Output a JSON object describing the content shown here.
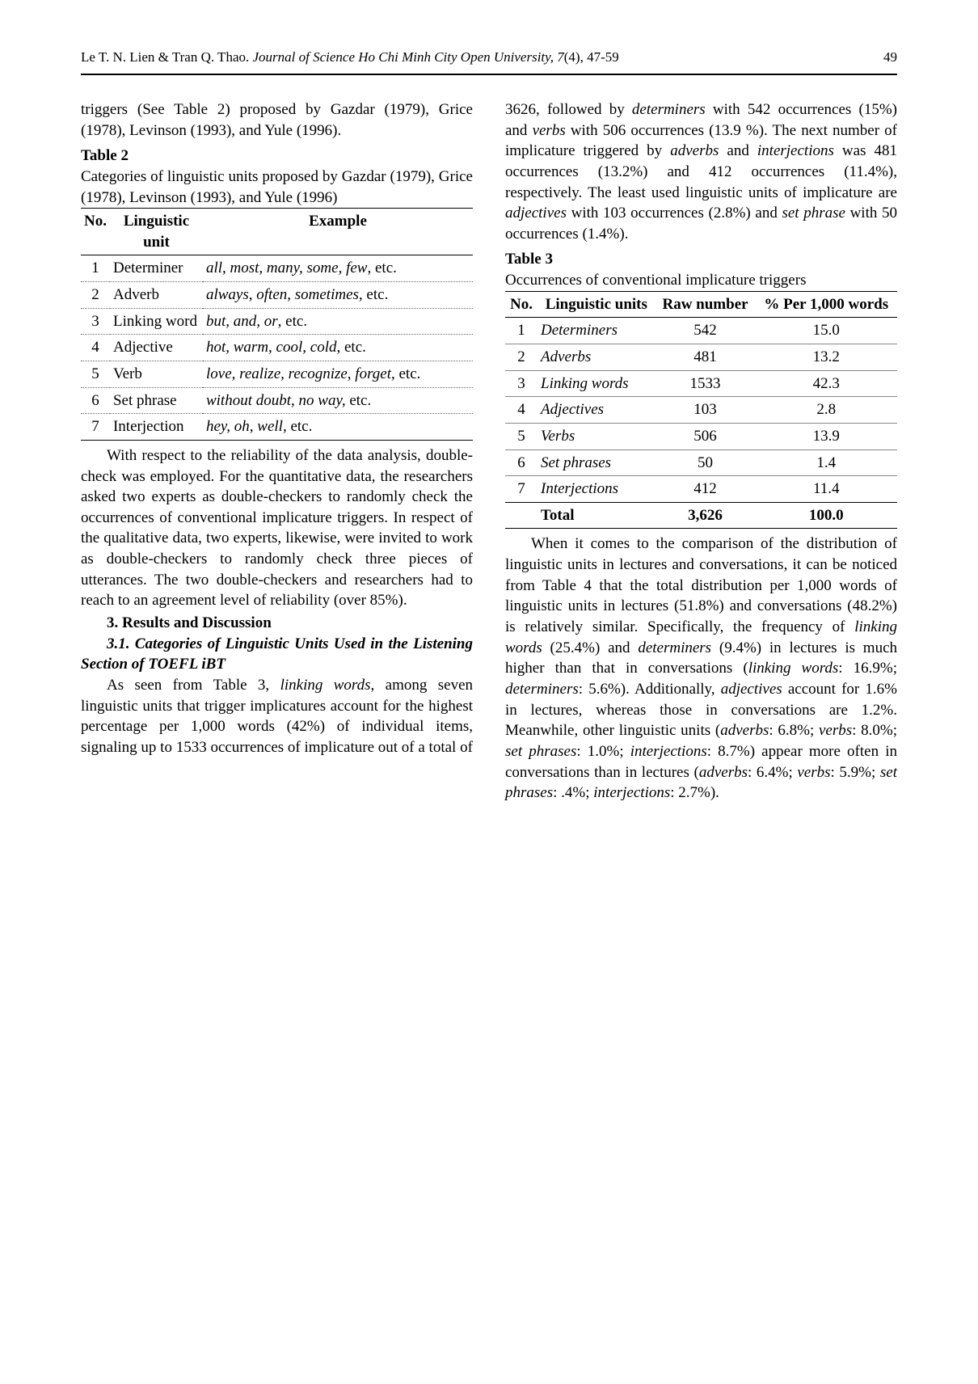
{
  "header": {
    "authors": "Le T. N. Lien & Tran Q. Thao.",
    "journal": "Journal of Science Ho Chi Minh City Open University, 7",
    "issue": "(4), 47-59",
    "page": "49"
  },
  "col1": {
    "para1": "triggers (See Table 2) proposed by Gazdar (1979), Grice (1978), Levinson (1993), and Yule (1996).",
    "table2_label": "Table 2",
    "table2_caption": "Categories of linguistic units proposed by Gazdar (1979), Grice (1978), Levinson (1993), and Yule (1996)",
    "table2_headers": {
      "no": "No.",
      "unit": "Linguistic unit",
      "example": "Example"
    },
    "table2_rows": [
      {
        "no": "1",
        "unit": "Determiner",
        "ex_i": "all, most, many, some, few",
        "ex_tail": ", etc."
      },
      {
        "no": "2",
        "unit": "Adverb",
        "ex_i": "always, often, sometimes,",
        "ex_tail": " etc."
      },
      {
        "no": "3",
        "unit": "Linking word",
        "ex_i": "but, and, or",
        "ex_tail": ", etc."
      },
      {
        "no": "4",
        "unit": "Adjective",
        "ex_i": "hot, warm, cool, cold",
        "ex_tail": ", etc."
      },
      {
        "no": "5",
        "unit": "Verb",
        "ex_i": "love, realize, recognize, forget",
        "ex_tail": ", etc."
      },
      {
        "no": "6",
        "unit": "Set phrase",
        "ex_i": "without doubt, no way,",
        "ex_tail": " etc."
      },
      {
        "no": "7",
        "unit": "Interjection",
        "ex_i": "hey, oh, well,",
        "ex_tail": " etc."
      }
    ],
    "para2": "With respect to the reliability of the data analysis, double-check was employed. For the quantitative data, the researchers asked two experts as double-checkers to randomly check the occurrences of conventional implicature triggers. In respect of the qualitative data, two experts, likewise, were invited to work as double-checkers to randomly check three pieces of utterances. The two double-checkers and researchers had to reach to an agreement level of reliability (over 85%).",
    "section3": "3. Results and Discussion",
    "section31": "3.1. Categories of Linguistic Units Used in the Listening Section of TOEFL iBT",
    "para3_pre": "As seen from Table 3, ",
    "para3_it": "linking words",
    "para3_post": ", among seven linguistic units that trigger implicatures account for the highest percentage per 1,000 words (42%) of individual items, signaling up to 1533 occurrences of implicature out of a total of"
  },
  "col2": {
    "para1a": "3626, followed by ",
    "para1b": "determiners",
    "para1c": " with 542 occurrences (15%) and ",
    "para1d": "verbs",
    "para1e": " with 506 occurrences (13.9 %). The next number of implicature triggered by ",
    "para1f": "adverbs",
    "para1g": " and ",
    "para1h": "interjections",
    "para1i": " was 481 occurrences (13.2%) and 412 occurrences (11.4%), respectively. The least used linguistic units of implicature are ",
    "para1j": "adjectives",
    "para1k": " with 103 occurrences (2.8%) and ",
    "para1l": "set phrase",
    "para1m": " with 50 occurrences (1.4%).",
    "table3_label": "Table 3",
    "table3_caption": "Occurrences of conventional implicature triggers",
    "table3_headers": {
      "no": "No.",
      "units": "Linguistic units",
      "raw": "Raw number",
      "pct": "% Per 1,000 words"
    },
    "table3_rows": [
      {
        "no": "1",
        "unit": "Determiners",
        "raw": "542",
        "pct": "15.0"
      },
      {
        "no": "2",
        "unit": "Adverbs",
        "raw": "481",
        "pct": "13.2"
      },
      {
        "no": "3",
        "unit": "Linking words",
        "raw": "1533",
        "pct": "42.3"
      },
      {
        "no": "4",
        "unit": "Adjectives",
        "raw": "103",
        "pct": "2.8"
      },
      {
        "no": "5",
        "unit": "Verbs",
        "raw": "506",
        "pct": "13.9"
      },
      {
        "no": "6",
        "unit": "Set phrases",
        "raw": "50",
        "pct": "1.4"
      },
      {
        "no": "7",
        "unit": "Interjections",
        "raw": "412",
        "pct": "11.4"
      }
    ],
    "table3_total": {
      "label": "Total",
      "raw": "3,626",
      "pct": "100.0"
    },
    "para2a": "When it comes to the comparison of the distribution of linguistic units in lectures and conversations, it can be noticed from Table 4 that the total distribution per 1,000 words of linguistic units in lectures (51.8%) and conversations (48.2%) is relatively similar. Specifically, the frequency of ",
    "para2b": "linking words",
    "para2c": " (25.4%) and ",
    "para2d": "determiners",
    "para2e": " (9.4%) in lectures is much higher than that in conversations (",
    "para2f": "linking words",
    "para2g": ": 16.9%; ",
    "para2h": "determiners",
    "para2i": ": 5.6%). Additionally, ",
    "para2j": "adjectives",
    "para2k": " account for 1.6% in lectures, whereas those in conversations are 1.2%. Meanwhile, other linguistic units (",
    "para2l": "adverbs",
    "para2m": ": 6.8%; ",
    "para2n": "verbs",
    "para2o": ": 8.0%; ",
    "para2p": "set phrases",
    "para2q": ": 1.0%; ",
    "para2r": "interjections",
    "para2s": ": 8.7%) appear more often in conversations than in lectures (",
    "para2t": "adverbs",
    "para2u": ": 6.4%; ",
    "para2v": "verbs",
    "para2w": ": 5.9%; ",
    "para2x": "set phrases",
    "para2y": ": .4%; ",
    "para2z": "interjections",
    "para2aa": ": 2.7%)."
  }
}
